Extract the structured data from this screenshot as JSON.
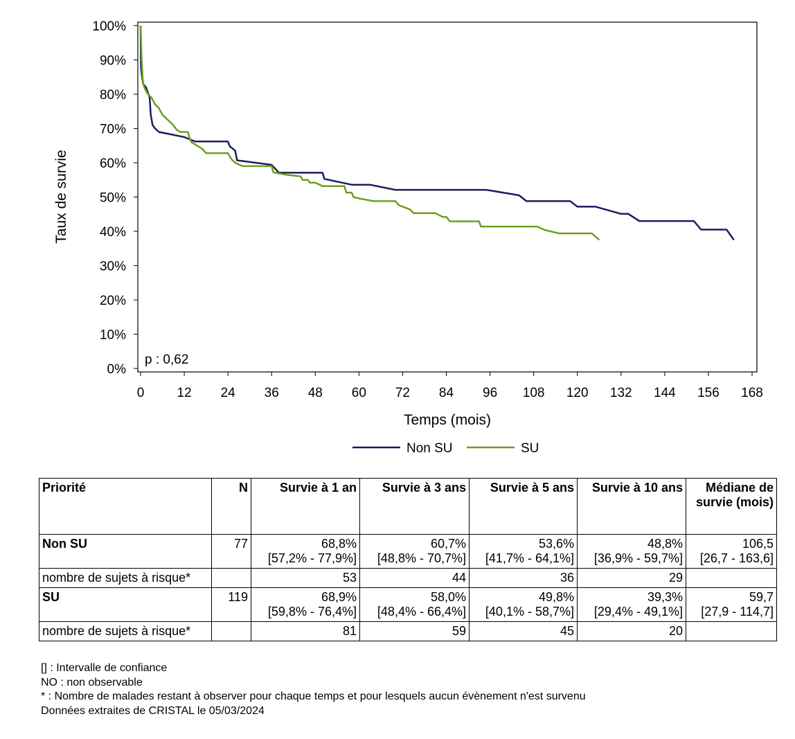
{
  "chart_data": {
    "type": "line",
    "xlabel": "Temps (mois)",
    "ylabel": "Taux de survie",
    "xlim": [
      0,
      168
    ],
    "ylim": [
      0,
      100
    ],
    "x_ticks": [
      0,
      12,
      24,
      36,
      48,
      60,
      72,
      84,
      96,
      108,
      120,
      132,
      144,
      156,
      168
    ],
    "y_ticks": [
      0,
      10,
      20,
      30,
      40,
      50,
      60,
      70,
      80,
      90,
      100
    ],
    "y_tick_suffix": "%",
    "annotation": "p : 0,62",
    "legend_position": "bottom",
    "series": [
      {
        "name": "Non SU",
        "color": "#1b1d5e",
        "points": [
          [
            0,
            100
          ],
          [
            0.1,
            88
          ],
          [
            0.4,
            85
          ],
          [
            0.7,
            83
          ],
          [
            1.5,
            82
          ],
          [
            2.5,
            79
          ],
          [
            2.8,
            74
          ],
          [
            3.3,
            71
          ],
          [
            4,
            70
          ],
          [
            5,
            69
          ],
          [
            12,
            67.5
          ],
          [
            15,
            66.2
          ],
          [
            24,
            66.2
          ],
          [
            24.5,
            64.8
          ],
          [
            26,
            63.5
          ],
          [
            26.5,
            60.7
          ],
          [
            36,
            59.4
          ],
          [
            38,
            57.1
          ],
          [
            50,
            57.1
          ],
          [
            50.5,
            55.3
          ],
          [
            58,
            53.6
          ],
          [
            63,
            53.6
          ],
          [
            70,
            52.1
          ],
          [
            95,
            52.1
          ],
          [
            104,
            50.5
          ],
          [
            106,
            48.8
          ],
          [
            118,
            48.8
          ],
          [
            120,
            47.2
          ],
          [
            125,
            47.2
          ],
          [
            132,
            45.1
          ],
          [
            134,
            45.1
          ],
          [
            137,
            43
          ],
          [
            152,
            43
          ],
          [
            154,
            40.5
          ],
          [
            161,
            40.5
          ],
          [
            163,
            37.5
          ]
        ]
      },
      {
        "name": "SU",
        "color": "#6e9e1e",
        "points": [
          [
            0,
            100
          ],
          [
            0.3,
            90
          ],
          [
            0.6,
            84
          ],
          [
            1,
            82
          ],
          [
            2,
            80
          ],
          [
            3,
            79
          ],
          [
            4,
            77
          ],
          [
            5,
            76
          ],
          [
            6,
            74
          ],
          [
            8,
            72
          ],
          [
            9,
            71
          ],
          [
            10,
            69.5
          ],
          [
            11,
            69
          ],
          [
            13,
            69
          ],
          [
            13.5,
            67
          ],
          [
            14,
            66
          ],
          [
            17,
            64
          ],
          [
            18,
            62.8
          ],
          [
            24,
            62.8
          ],
          [
            25,
            61
          ],
          [
            26,
            60
          ],
          [
            28,
            59
          ],
          [
            36,
            59
          ],
          [
            36.5,
            57.2
          ],
          [
            40,
            56.5
          ],
          [
            44,
            56
          ],
          [
            44.5,
            55
          ],
          [
            46,
            55
          ],
          [
            46.5,
            54.2
          ],
          [
            48,
            54.2
          ],
          [
            50,
            53.2
          ],
          [
            56,
            53.2
          ],
          [
            56.5,
            51.3
          ],
          [
            58,
            51.3
          ],
          [
            58.5,
            50
          ],
          [
            60,
            49.6
          ],
          [
            64,
            48.8
          ],
          [
            70,
            48.8
          ],
          [
            71,
            47.6
          ],
          [
            74,
            46.4
          ],
          [
            75,
            45.3
          ],
          [
            81,
            45.3
          ],
          [
            83,
            44.2
          ],
          [
            84,
            44.2
          ],
          [
            85,
            42.9
          ],
          [
            93,
            42.9
          ],
          [
            93.5,
            41.4
          ],
          [
            109,
            41.4
          ],
          [
            111,
            40.4
          ],
          [
            115,
            39.4
          ],
          [
            124,
            39.4
          ],
          [
            126,
            37.5
          ]
        ]
      }
    ]
  },
  "table": {
    "headers": [
      "Priorité",
      "N",
      "Survie à 1 an",
      "Survie à 3 ans",
      "Survie à 5 ans",
      "Survie à 10 ans",
      "Médiane de survie (mois)"
    ],
    "rows": [
      {
        "label": "Non SU",
        "n": "77",
        "values": [
          [
            "68,8%",
            "[57,2% - 77,9%]"
          ],
          [
            "60,7%",
            "[48,8% - 70,7%]"
          ],
          [
            "53,6%",
            "[41,7% - 64,1%]"
          ],
          [
            "48,8%",
            "[36,9% - 59,7%]"
          ],
          [
            "106,5",
            "[26,7 - 163,6]"
          ]
        ]
      },
      {
        "label": "nombre de sujets à risque*",
        "n": "",
        "values": [
          [
            "53"
          ],
          [
            "44"
          ],
          [
            "36"
          ],
          [
            "29"
          ],
          [
            ""
          ]
        ]
      },
      {
        "label": "SU",
        "n": "119",
        "values": [
          [
            "68,9%",
            "[59,8% - 76,4%]"
          ],
          [
            "58,0%",
            "[48,4% - 66,4%]"
          ],
          [
            "49,8%",
            "[40,1% - 58,7%]"
          ],
          [
            "39,3%",
            "[29,4% - 49,1%]"
          ],
          [
            "59,7",
            "[27,9 - 114,7]"
          ]
        ]
      },
      {
        "label": "nombre de sujets à risque*",
        "n": "",
        "values": [
          [
            "81"
          ],
          [
            "59"
          ],
          [
            "45"
          ],
          [
            "20"
          ],
          [
            ""
          ]
        ]
      }
    ]
  },
  "notes": [
    "[] : Intervalle de confiance",
    "NO : non observable",
    "* : Nombre de malades restant à observer pour chaque temps et pour lesquels aucun évènement n'est survenu",
    "Données extraites de CRISTAL le 05/03/2024"
  ]
}
